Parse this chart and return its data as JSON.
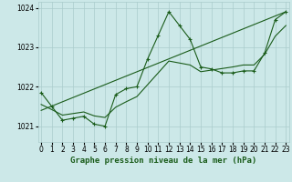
{
  "title": "Graphe pression niveau de la mer (hPa)",
  "xlabel_values": [
    0,
    1,
    2,
    3,
    4,
    5,
    6,
    7,
    8,
    9,
    10,
    11,
    12,
    13,
    14,
    15,
    16,
    17,
    18,
    19,
    20,
    21,
    22,
    23
  ],
  "xlim": [
    -0.3,
    23.3
  ],
  "ylim": [
    1020.6,
    1024.15
  ],
  "yticks": [
    1021,
    1022,
    1023,
    1024
  ],
  "background_color": "#cce8e8",
  "grid_color": "#aacccc",
  "line_color": "#1a5c1a",
  "main_line_x": [
    0,
    1,
    2,
    3,
    4,
    5,
    6,
    7,
    8,
    9,
    10,
    11,
    12,
    13,
    14,
    15,
    16,
    17,
    18,
    19,
    20,
    21,
    22,
    23
  ],
  "main_line_y": [
    1021.85,
    1021.5,
    1021.15,
    1021.2,
    1021.25,
    1021.05,
    1021.0,
    1021.8,
    1021.95,
    1022.0,
    1022.7,
    1023.3,
    1023.9,
    1023.55,
    1023.2,
    1022.5,
    1022.45,
    1022.35,
    1022.35,
    1022.4,
    1022.4,
    1022.85,
    1023.7,
    1023.9
  ],
  "trend_line_x": [
    0,
    23
  ],
  "trend_line_y": [
    1021.4,
    1023.9
  ],
  "smooth_line_x": [
    0,
    1,
    2,
    3,
    4,
    5,
    6,
    7,
    8,
    9,
    10,
    11,
    12,
    13,
    14,
    15,
    16,
    17,
    18,
    19,
    20,
    21,
    22,
    23
  ],
  "smooth_line_y": [
    1021.55,
    1021.42,
    1021.28,
    1021.32,
    1021.36,
    1021.26,
    1021.22,
    1021.48,
    1021.62,
    1021.75,
    1022.05,
    1022.35,
    1022.65,
    1022.6,
    1022.55,
    1022.38,
    1022.42,
    1022.46,
    1022.5,
    1022.55,
    1022.55,
    1022.82,
    1023.28,
    1023.55
  ],
  "title_fontsize": 6.5,
  "tick_fontsize": 5.5
}
